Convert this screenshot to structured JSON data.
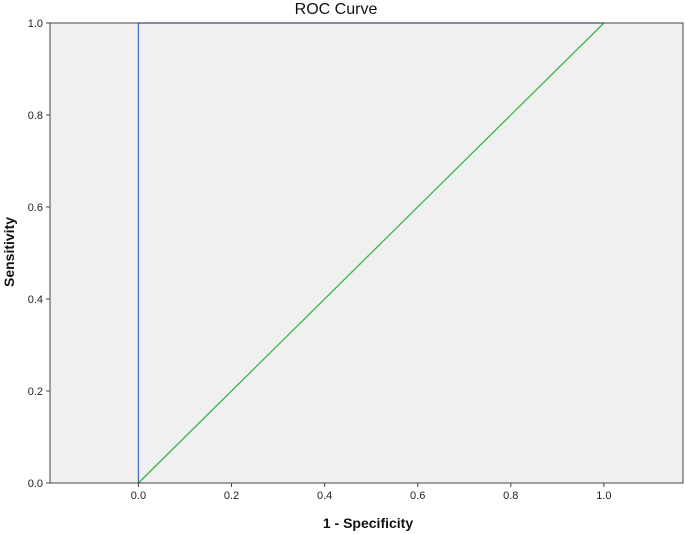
{
  "chart_data": {
    "type": "line",
    "title": "ROC Curve",
    "xlabel": "1 - Specificity",
    "ylabel": "Sensitivity",
    "xlim": [
      -0.19,
      1.17
    ],
    "ylim": [
      0,
      1
    ],
    "x_ticks": [
      0.0,
      0.2,
      0.4,
      0.6,
      0.8,
      1.0
    ],
    "y_ticks": [
      0.0,
      0.2,
      0.4,
      0.6,
      0.8,
      1.0
    ],
    "x_tick_labels": [
      "0.0",
      "0.2",
      "0.4",
      "0.6",
      "0.8",
      "1.0"
    ],
    "y_tick_labels": [
      "0.0",
      "0.2",
      "0.4",
      "0.6",
      "0.8",
      "1.0"
    ],
    "grid": false,
    "plot_background": "#f0f0f0",
    "series": [
      {
        "color": "#4a6fc9",
        "x": [
          0.0,
          0.0,
          1.0
        ],
        "y": [
          0.0,
          1.0,
          1.0
        ]
      },
      {
        "color": "#39b54a",
        "x": [
          0.0,
          1.0
        ],
        "y": [
          0.0,
          1.0
        ]
      }
    ]
  }
}
